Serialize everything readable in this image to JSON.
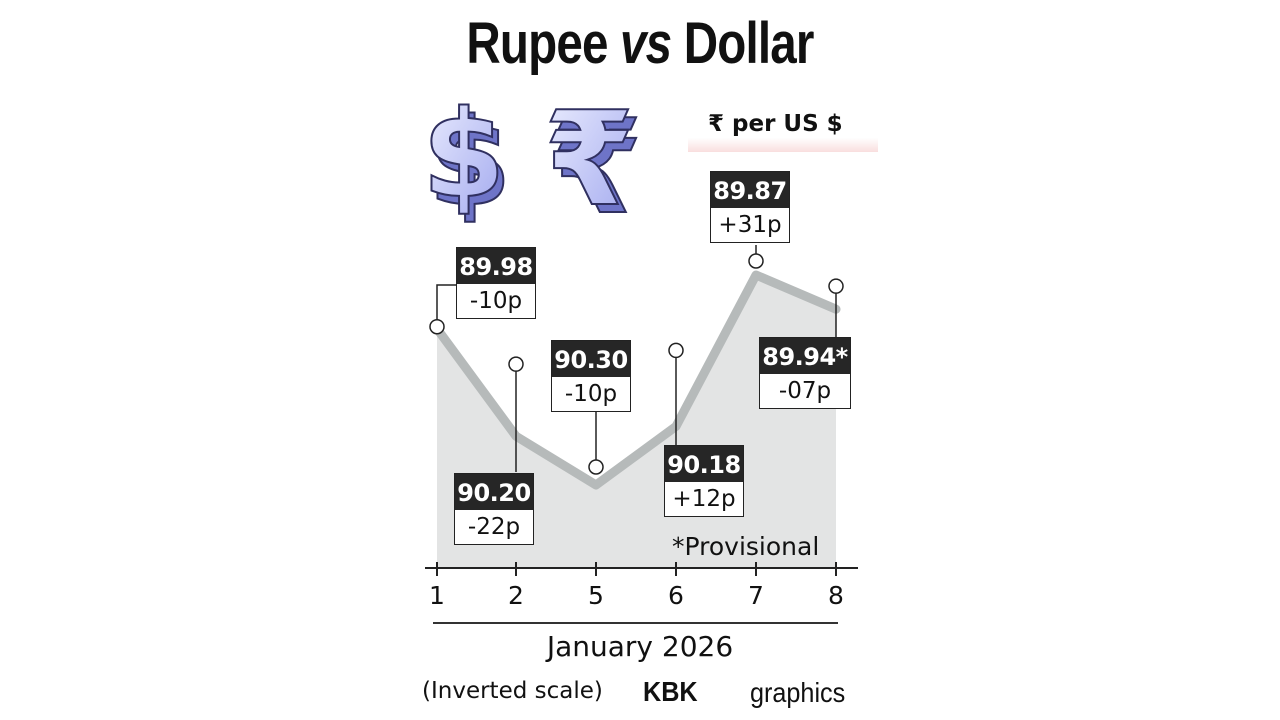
{
  "title": {
    "pre": "Rupee ",
    "vs": "vs",
    "post": " Dollar"
  },
  "unit_label": "₹ per US $",
  "icons": [
    "dollar-3d-icon",
    "rupee-3d-icon"
  ],
  "colors": {
    "area": "#e3e4e4",
    "line": "#b6baba",
    "label_dark": "#262626",
    "unit_bg": "#f9dede"
  },
  "chart_data": {
    "type": "area",
    "title": "Rupee vs Dollar",
    "ylabel": "₹ per US $",
    "y_scale": "inverted",
    "x": [
      "1",
      "2",
      "5",
      "6",
      "7",
      "8"
    ],
    "values": [
      89.98,
      90.2,
      90.3,
      90.18,
      89.87,
      89.94
    ],
    "value_labels": [
      "89.98",
      "90.20",
      "90.30",
      "90.18",
      "89.87",
      "89.94*"
    ],
    "changes": [
      "-10p",
      "-22p",
      "-10p",
      "+12p",
      "+31p",
      "-07p"
    ],
    "footnote": "*Provisional",
    "xlabel": "January 2026",
    "note": "(Inverted scale)"
  },
  "footer": {
    "brand": "KBK",
    "credit": "graphics"
  }
}
